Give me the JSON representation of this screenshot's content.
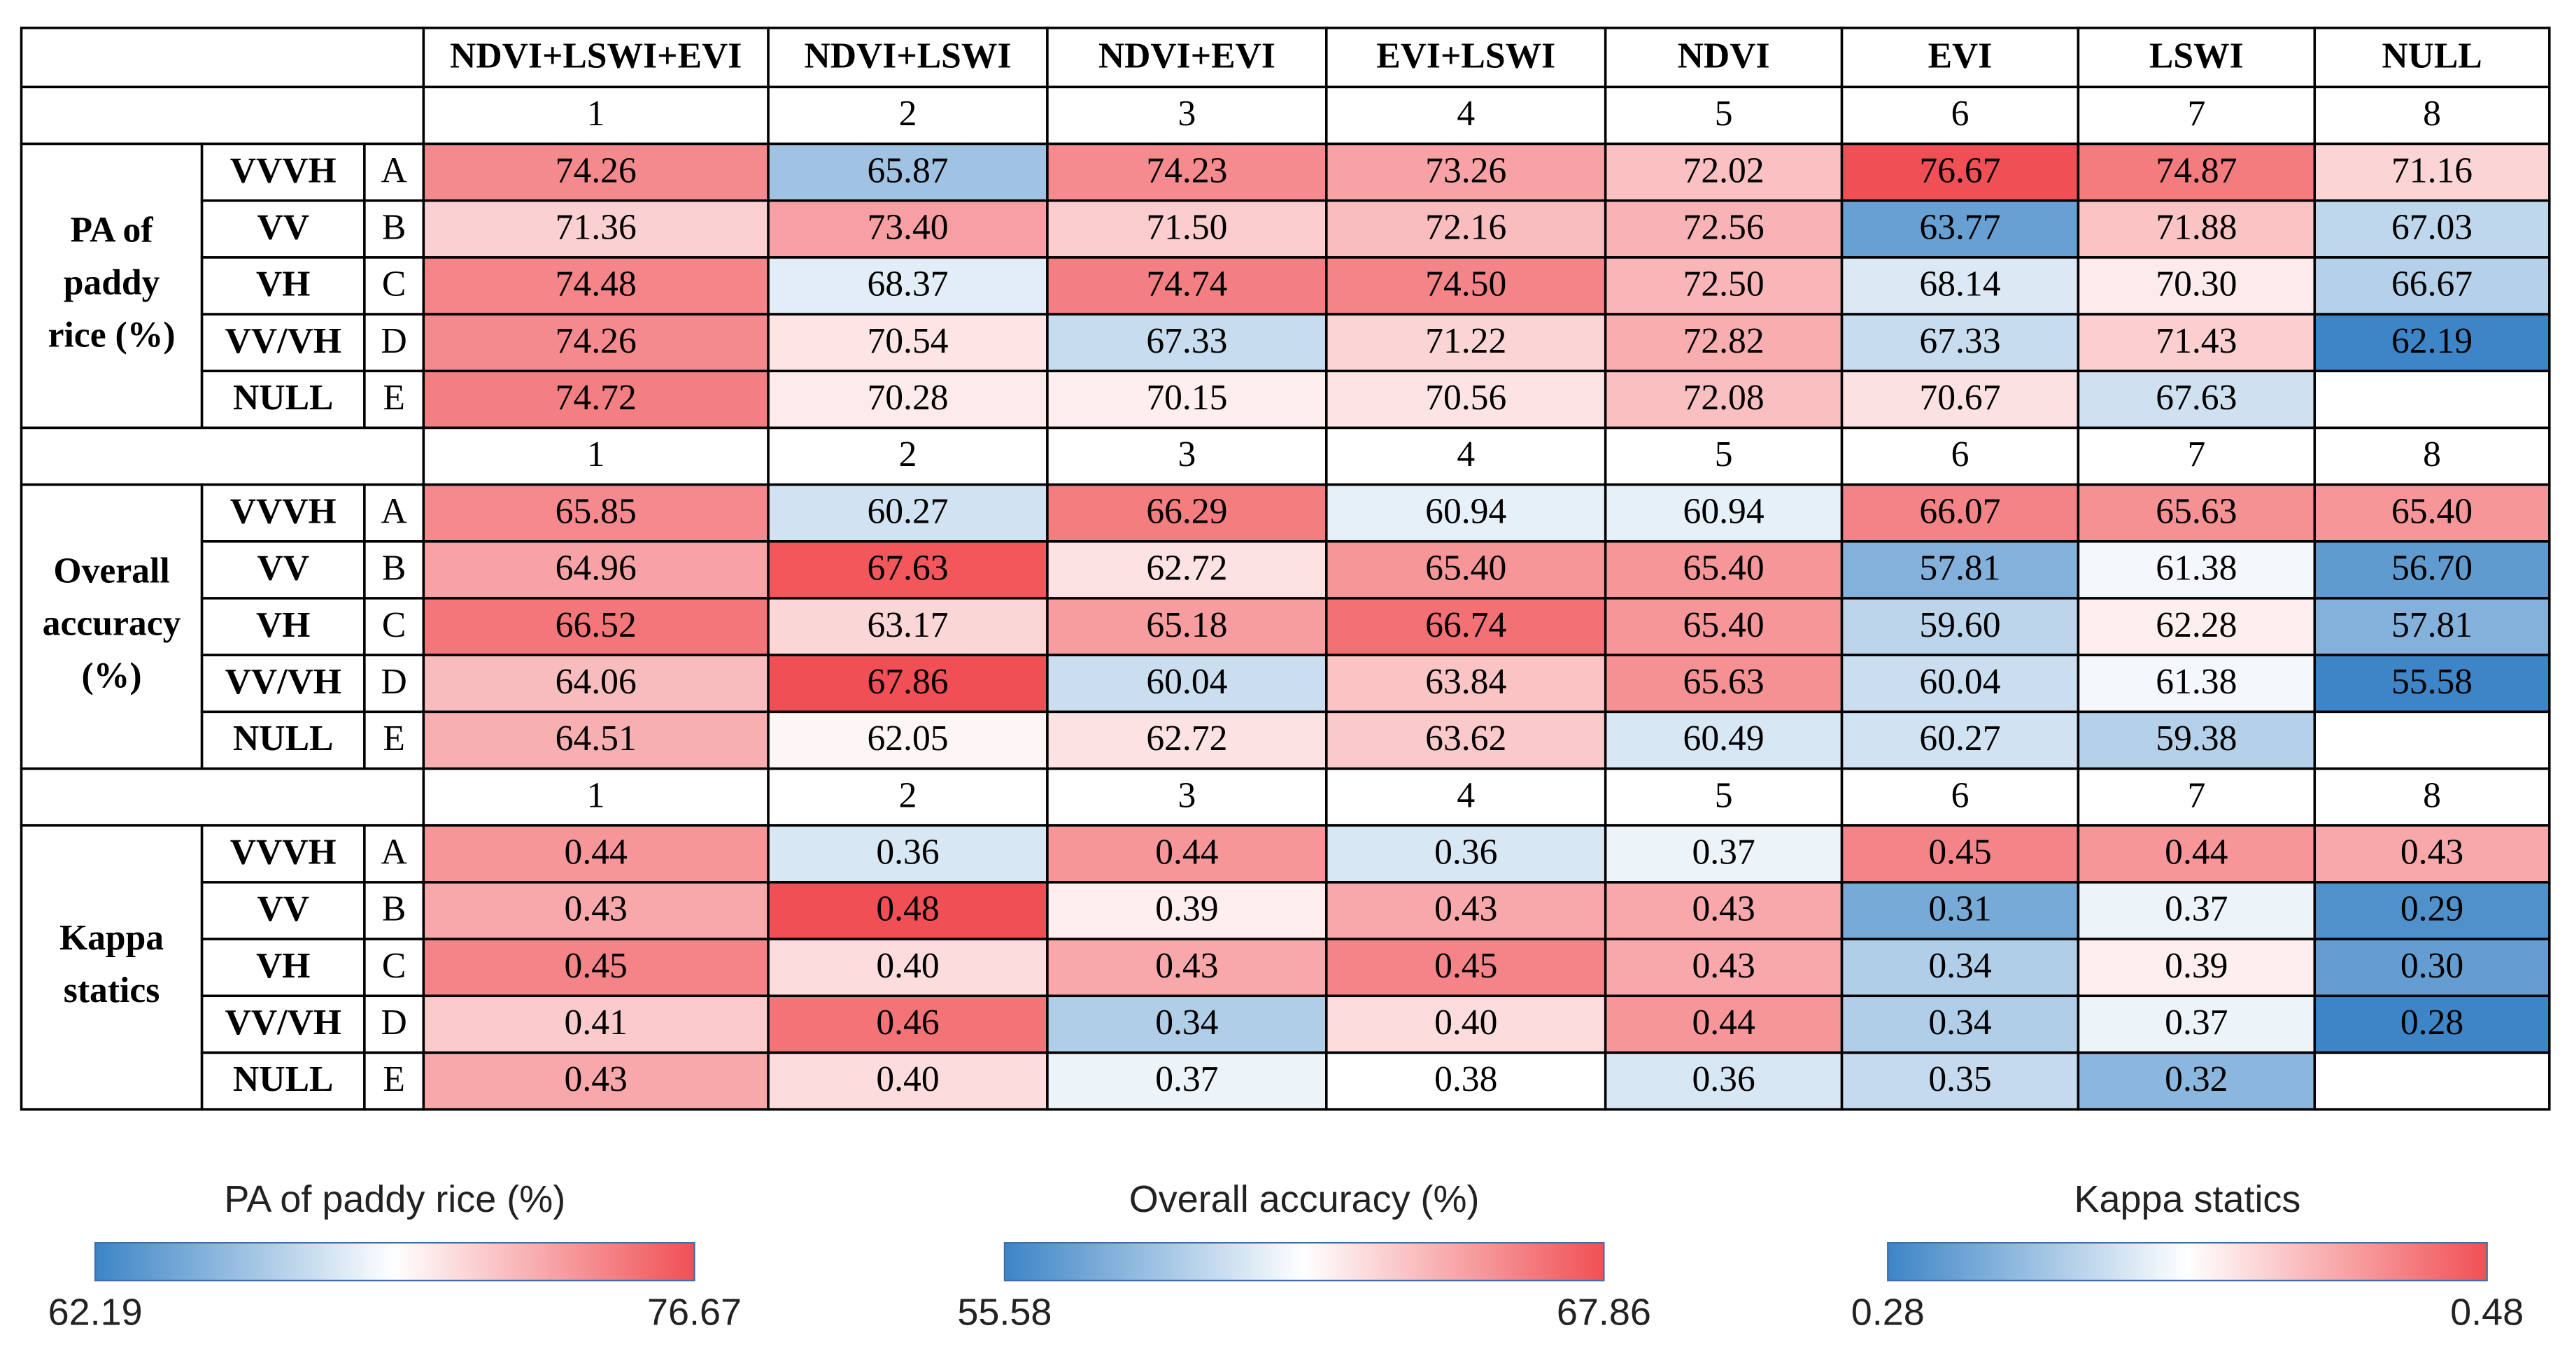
{
  "table": {
    "columns": [
      "NDVI+LSWI+EVI",
      "NDVI+LSWI",
      "NDVI+EVI",
      "EVI+LSWI",
      "NDVI",
      "EVI",
      "LSWI",
      "NULL"
    ],
    "sections": [
      {
        "label": [
          "PA of",
          "paddy",
          "rice (%)"
        ],
        "numbers": [
          1,
          2,
          3,
          4,
          5,
          6,
          7,
          8
        ],
        "rows": [
          {
            "name": "VVVH",
            "letter": "A",
            "values": [
              "74.26",
              "65.87",
              "74.23",
              "73.26",
              "72.02",
              "76.67",
              "74.87",
              "71.16"
            ]
          },
          {
            "name": "VV",
            "letter": "B",
            "values": [
              "71.36",
              "73.40",
              "71.50",
              "72.16",
              "72.56",
              "63.77",
              "71.88",
              "67.03"
            ]
          },
          {
            "name": "VH",
            "letter": "C",
            "values": [
              "74.48",
              "68.37",
              "74.74",
              "74.50",
              "72.50",
              "68.14",
              "70.30",
              "66.67"
            ]
          },
          {
            "name": "VV/VH",
            "letter": "D",
            "values": [
              "74.26",
              "70.54",
              "67.33",
              "71.22",
              "72.82",
              "67.33",
              "71.43",
              "62.19"
            ]
          },
          {
            "name": "NULL",
            "letter": "E",
            "values": [
              "74.72",
              "70.28",
              "70.15",
              "70.56",
              "72.08",
              "70.67",
              "67.63",
              null
            ]
          }
        ]
      },
      {
        "label": [
          "Overall",
          "accuracy",
          "(%)"
        ],
        "numbers": [
          1,
          2,
          3,
          4,
          5,
          6,
          7,
          8
        ],
        "rows": [
          {
            "name": "VVVH",
            "letter": "A",
            "values": [
              "65.85",
              "60.27",
              "66.29",
              "60.94",
              "60.94",
              "66.07",
              "65.63",
              "65.40"
            ]
          },
          {
            "name": "VV",
            "letter": "B",
            "values": [
              "64.96",
              "67.63",
              "62.72",
              "65.40",
              "65.40",
              "57.81",
              "61.38",
              "56.70"
            ]
          },
          {
            "name": "VH",
            "letter": "C",
            "values": [
              "66.52",
              "63.17",
              "65.18",
              "66.74",
              "65.40",
              "59.60",
              "62.28",
              "57.81"
            ]
          },
          {
            "name": "VV/VH",
            "letter": "D",
            "values": [
              "64.06",
              "67.86",
              "60.04",
              "63.84",
              "65.63",
              "60.04",
              "61.38",
              "55.58"
            ]
          },
          {
            "name": "NULL",
            "letter": "E",
            "values": [
              "64.51",
              "62.05",
              "62.72",
              "63.62",
              "60.49",
              "60.27",
              "59.38",
              null
            ]
          }
        ]
      },
      {
        "label": [
          "Kappa",
          "statics"
        ],
        "numbers": [
          1,
          2,
          3,
          4,
          5,
          6,
          7,
          8
        ],
        "rows": [
          {
            "name": "VVVH",
            "letter": "A",
            "values": [
              "0.44",
              "0.36",
              "0.44",
              "0.36",
              "0.37",
              "0.45",
              "0.44",
              "0.43"
            ]
          },
          {
            "name": "VV",
            "letter": "B",
            "values": [
              "0.43",
              "0.48",
              "0.39",
              "0.43",
              "0.43",
              "0.31",
              "0.37",
              "0.29"
            ]
          },
          {
            "name": "VH",
            "letter": "C",
            "values": [
              "0.45",
              "0.40",
              "0.43",
              "0.45",
              "0.43",
              "0.34",
              "0.39",
              "0.30"
            ]
          },
          {
            "name": "VV/VH",
            "letter": "D",
            "values": [
              "0.41",
              "0.46",
              "0.34",
              "0.40",
              "0.44",
              "0.34",
              "0.37",
              "0.28"
            ]
          },
          {
            "name": "NULL",
            "letter": "E",
            "values": [
              "0.43",
              "0.40",
              "0.37",
              "0.38",
              "0.36",
              "0.35",
              "0.32",
              null
            ]
          }
        ]
      }
    ]
  },
  "legends": [
    {
      "title": "PA of paddy rice (%)",
      "min": "62.19",
      "max": "76.67"
    },
    {
      "title": "Overall accuracy (%)",
      "min": "55.58",
      "max": "67.86"
    },
    {
      "title": "Kappa statics",
      "min": "0.28",
      "max": "0.48"
    }
  ]
}
